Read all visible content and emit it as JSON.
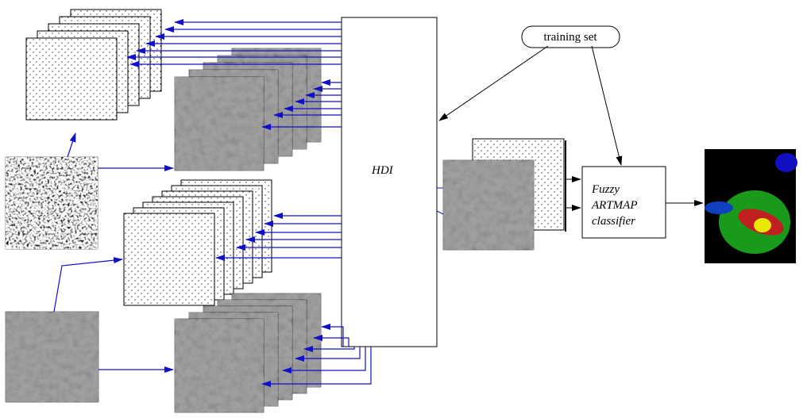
{
  "training_set": "training set",
  "hdi": "HDI",
  "classifier": [
    "Fuzzy",
    "ARTMAP",
    "classifier"
  ]
}
